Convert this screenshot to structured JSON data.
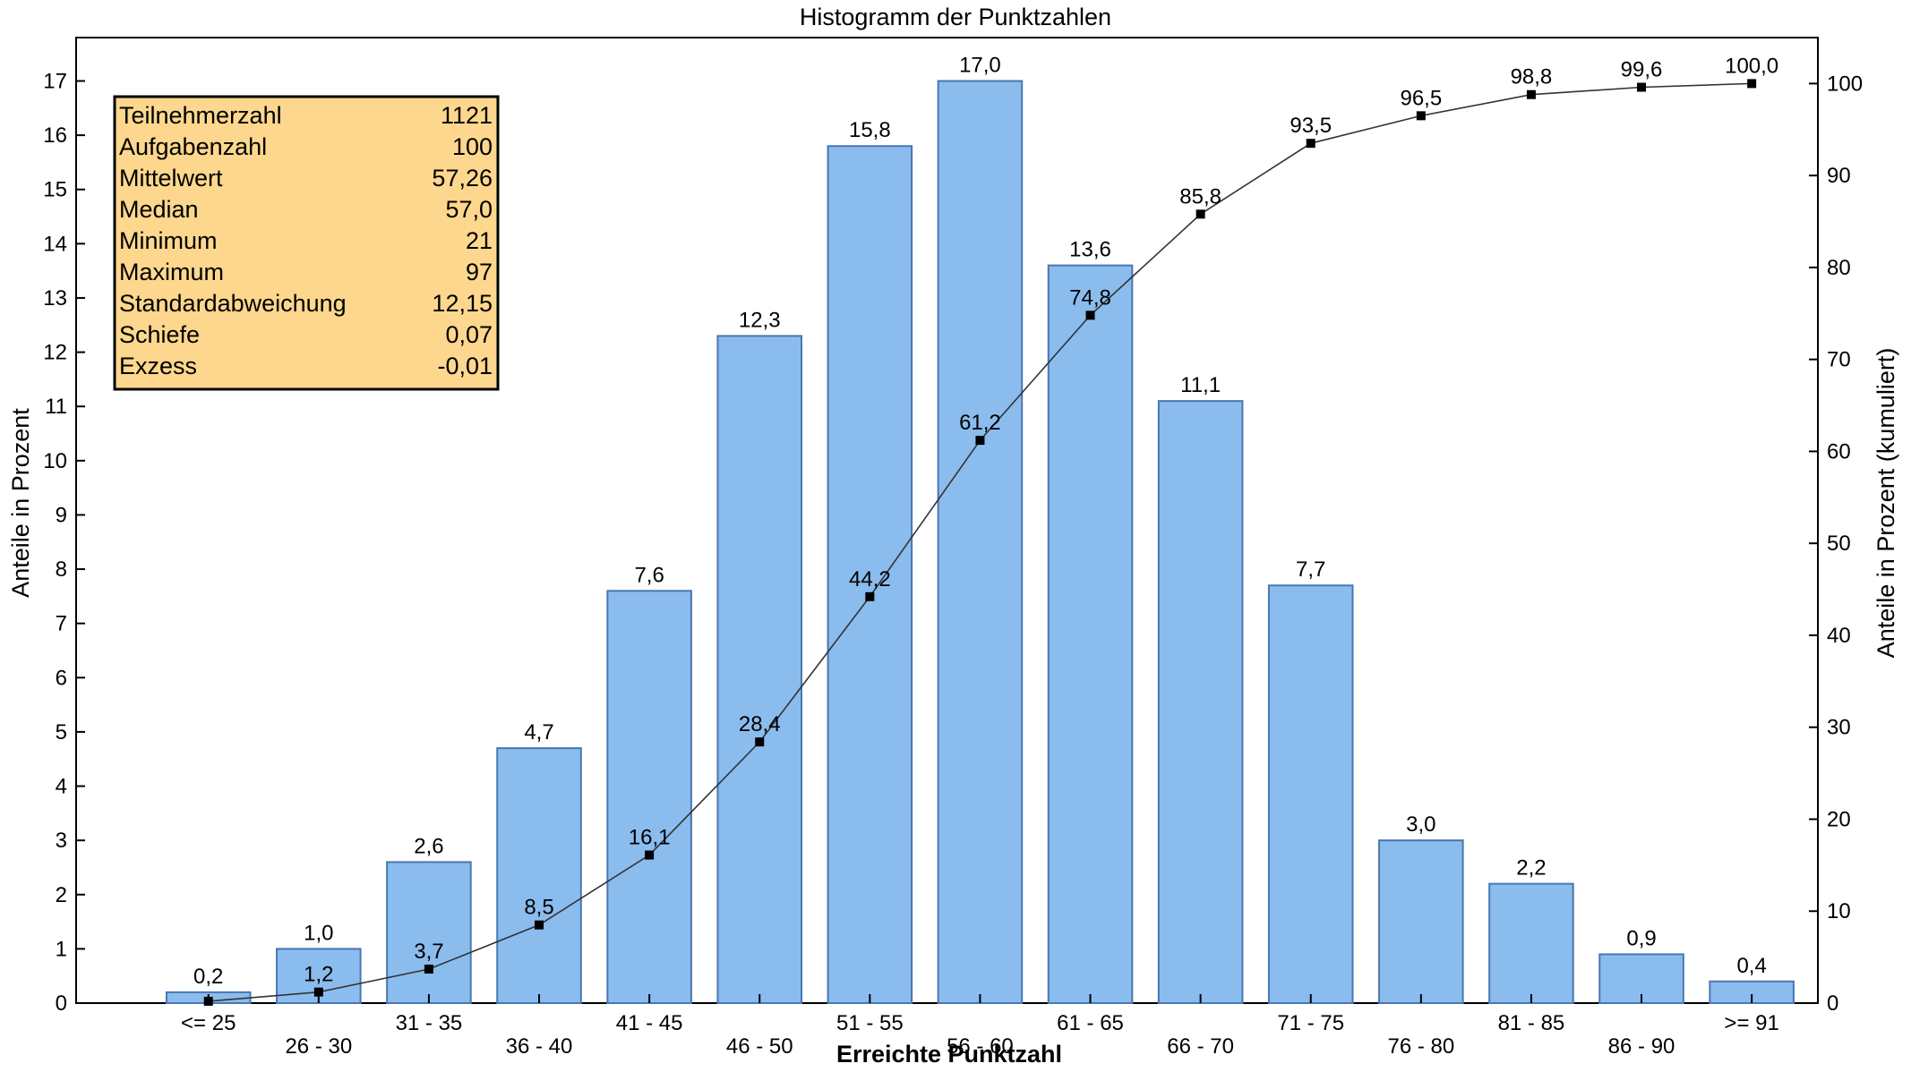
{
  "chart_data": {
    "type": "bar",
    "title": "Histogramm der Punktzahlen",
    "xlabel": "Erreichte Punktzahl",
    "ylabel": "Anteile in Prozent",
    "y2label": "Anteile in Prozent (kumuliert)",
    "categories": [
      "<= 25",
      "26 - 30",
      "31 - 35",
      "36 - 40",
      "41 - 45",
      "46 - 50",
      "51 - 55",
      "56 - 60",
      "61 - 65",
      "66 - 70",
      "71 - 75",
      "76 - 80",
      "81 - 85",
      "86 - 90",
      ">= 91"
    ],
    "series": [
      {
        "type": "bar",
        "axis": "left",
        "values": [
          0.2,
          1.0,
          2.6,
          4.7,
          7.6,
          12.3,
          15.8,
          17.0,
          13.6,
          11.1,
          7.7,
          3.0,
          2.2,
          0.9,
          0.4
        ],
        "labels": [
          "0,2",
          "1,0",
          "2,6",
          "4,7",
          "7,6",
          "12,3",
          "15,8",
          "17,0",
          "13,6",
          "11,1",
          "7,7",
          "3,0",
          "2,2",
          "0,9",
          "0,4"
        ]
      },
      {
        "type": "line",
        "axis": "right",
        "values": [
          0.2,
          1.2,
          3.7,
          8.5,
          16.1,
          28.4,
          44.2,
          61.2,
          74.8,
          85.8,
          93.5,
          96.5,
          98.8,
          99.6,
          100.0
        ],
        "labels": [
          "",
          "1,2",
          "3,7",
          "8,5",
          "16,1",
          "28,4",
          "44,2",
          "61,2",
          "74,8",
          "85,8",
          "93,5",
          "96,5",
          "98,8",
          "99,6",
          "100,0"
        ]
      }
    ],
    "ylim": [
      0,
      17.8
    ],
    "yticks": [
      "0",
      "1",
      "2",
      "3",
      "4",
      "5",
      "6",
      "7",
      "8",
      "9",
      "10",
      "11",
      "12",
      "13",
      "14",
      "15",
      "16",
      "17"
    ],
    "y2lim": [
      0,
      105
    ],
    "y2ticks": [
      "0",
      "10",
      "20",
      "30",
      "40",
      "50",
      "60",
      "70",
      "80",
      "90",
      "100"
    ],
    "grid": false,
    "colors": {
      "bar_fill": "#8bbcee",
      "bar_stroke": "#4a77b0",
      "line": "#333333",
      "marker": "#000000",
      "stats_fill": "#fcd78d"
    },
    "stats": [
      {
        "label": "Teilnehmerzahl",
        "value": "1121"
      },
      {
        "label": "Aufgabenzahl",
        "value": "100"
      },
      {
        "label": "Mittelwert",
        "value": "57,26"
      },
      {
        "label": "Median",
        "value": "57,0"
      },
      {
        "label": "Minimum",
        "value": "21"
      },
      {
        "label": "Maximum",
        "value": "97"
      },
      {
        "label": "Standardabweichung",
        "value": "12,15"
      },
      {
        "label": "Schiefe",
        "value": "0,07"
      },
      {
        "label": "Exzess",
        "value": "-0,01"
      }
    ]
  }
}
